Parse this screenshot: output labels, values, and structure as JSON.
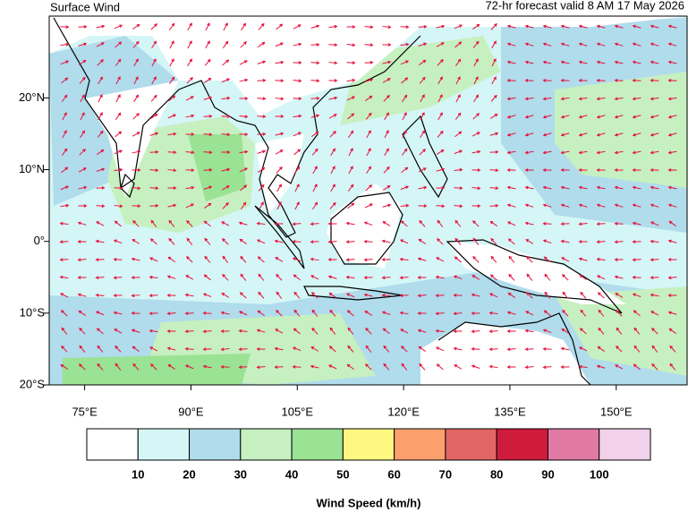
{
  "header": {
    "title": "Surface Wind",
    "subtitle": "72-hr forecast valid 8 AM 17 May 2026"
  },
  "map": {
    "xlim": [
      70,
      160
    ],
    "ylim": [
      -20,
      31.4
    ],
    "xticks": [
      {
        "value": 75,
        "label": "75°E"
      },
      {
        "value": 90,
        "label": "90°E"
      },
      {
        "value": 105,
        "label": "105°E"
      },
      {
        "value": 120,
        "label": "120°E"
      },
      {
        "value": 135,
        "label": "135°E"
      },
      {
        "value": 150,
        "label": "150°E"
      }
    ],
    "yticks": [
      {
        "value": 20,
        "label": "20°N"
      },
      {
        "value": 10,
        "label": "10°N"
      },
      {
        "value": 0,
        "label": "0°"
      },
      {
        "value": -10,
        "label": "10°S"
      },
      {
        "value": -20,
        "label": "20°S"
      }
    ]
  },
  "colorbar": {
    "colors": [
      "#ffffff",
      "#d4f6f6",
      "#b0dcec",
      "#c6f0c0",
      "#9ae294",
      "#fef882",
      "#fba06e",
      "#e26666",
      "#d01c3c",
      "#e07aa4",
      "#f2d2ea"
    ],
    "ticks": [
      10,
      20,
      30,
      40,
      50,
      60,
      70,
      80,
      90,
      100
    ],
    "label": "Wind Speed (km/h)"
  }
}
